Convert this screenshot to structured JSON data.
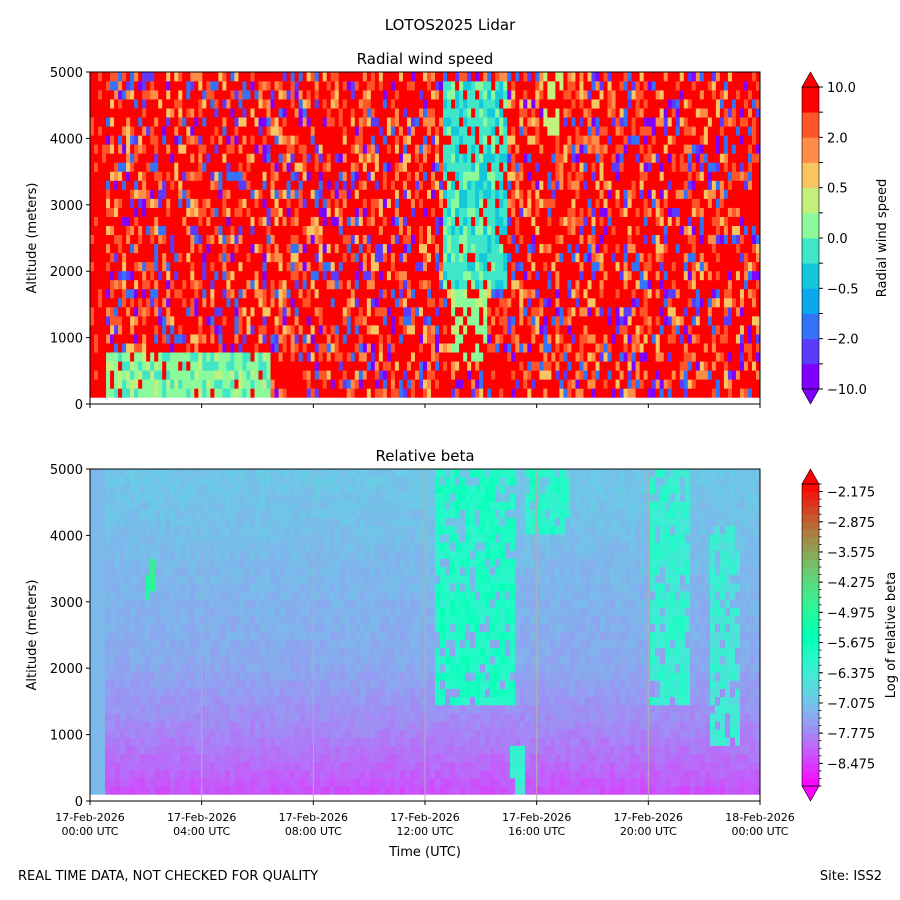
{
  "figure": {
    "suptitle": "LOTOS2025 Lidar",
    "footer_left": "REAL TIME DATA, NOT CHECKED FOR QUALITY",
    "footer_right": "Site: ISS2"
  },
  "chart_data": [
    {
      "type": "heatmap",
      "title": "Radial wind speed",
      "xlabel": "",
      "ylabel": "Altitude (meters)",
      "xlim_hours_utc": [
        0,
        24
      ],
      "ylim": [
        0,
        5000
      ],
      "yticks": [
        0,
        1000,
        2000,
        3000,
        4000,
        5000
      ],
      "xtick_hours": [
        0,
        4,
        8,
        12,
        16,
        20,
        24
      ],
      "xtick_labels_shown": false,
      "data_altitude_min": 100,
      "colorbar": {
        "label": "Radial wind speed",
        "levels": [
          -10.0,
          -5.0,
          -2.0,
          -1.0,
          -0.5,
          -0.2,
          0.0,
          0.2,
          0.5,
          1.0,
          2.0,
          5.0,
          10.0
        ],
        "tick_labels": [
          "10.0",
          "2.0",
          "0.5",
          "0.0",
          "−0.5",
          "−2.0",
          "−10.0"
        ],
        "colors": [
          "#8000ff",
          "#5a3cfe",
          "#3373f8",
          "#0ca8ed",
          "#14c8dc",
          "#3fe6c8",
          "#8bfa9b",
          "#c2f07d",
          "#f7c662",
          "#ff8c47",
          "#ff5529",
          "#ff0000"
        ],
        "extend": "both"
      },
      "description": "Highly variable radial wind speeds; mostly strong positive (>2 m/s) with interspersed negative values; near-zero/slightly negative region around 12:30-15:00 UTC between 2000-5000 m; low-level weak winds 01:00-06:00 UTC below 800 m"
    },
    {
      "type": "heatmap",
      "title": "Relative beta",
      "xlabel": "Time (UTC)",
      "ylabel": "Altitude (meters)",
      "xlim_hours_utc": [
        0,
        24
      ],
      "ylim": [
        0,
        5000
      ],
      "yticks": [
        0,
        1000,
        2000,
        3000,
        4000,
        5000
      ],
      "xtick_hours": [
        0,
        4,
        8,
        12,
        16,
        20,
        24
      ],
      "xtick_labels": [
        [
          "17-Feb-2026",
          "00:00 UTC"
        ],
        [
          "17-Feb-2026",
          "04:00 UTC"
        ],
        [
          "17-Feb-2026",
          "08:00 UTC"
        ],
        [
          "17-Feb-2026",
          "12:00 UTC"
        ],
        [
          "17-Feb-2026",
          "16:00 UTC"
        ],
        [
          "17-Feb-2026",
          "20:00 UTC"
        ],
        [
          "18-Feb-2026",
          "00:00 UTC"
        ]
      ],
      "data_altitude_min": 100,
      "colorbar": {
        "label": "Log of relative beta",
        "range": [
          -9.0,
          -2.0
        ],
        "tick_values": [
          -2.175,
          -2.875,
          -3.575,
          -4.275,
          -4.975,
          -5.675,
          -6.375,
          -7.075,
          -7.775,
          -8.475
        ],
        "tick_labels": [
          "−2.175",
          "−2.875",
          "−3.575",
          "−4.275",
          "−4.975",
          "−5.675",
          "−6.375",
          "−7.075",
          "−7.775",
          "−8.475"
        ],
        "extend": "both"
      },
      "background_value_by_altitude": [
        [
          100,
          -8.3
        ],
        [
          1000,
          -7.8
        ],
        [
          2000,
          -7.4
        ],
        [
          3500,
          -7.2
        ],
        [
          5000,
          -7.0
        ]
      ],
      "features": [
        {
          "name": "thin plume",
          "hours": [
            2.0,
            2.3
          ],
          "alt": [
            3000,
            3600
          ],
          "value": -5.0
        },
        {
          "name": "afternoon aerosol layer",
          "hours": [
            12.3,
            15.3
          ],
          "alt": [
            1400,
            5000
          ],
          "value": -5.9
        },
        {
          "name": "surface plume",
          "hours": [
            15.0,
            15.6
          ],
          "alt": [
            100,
            800
          ],
          "value": -6.3
        },
        {
          "name": "upper layer",
          "hours": [
            15.6,
            17.2
          ],
          "alt": [
            4000,
            5000
          ],
          "value": -6.0
        },
        {
          "name": "evening layer",
          "hours": [
            20.0,
            21.5
          ],
          "alt": [
            1500,
            5000
          ],
          "value": -6.2
        },
        {
          "name": "evening layer 2",
          "hours": [
            22.2,
            23.3
          ],
          "alt": [
            800,
            4200
          ],
          "value": -6.4
        }
      ],
      "grid": "vertical"
    }
  ]
}
